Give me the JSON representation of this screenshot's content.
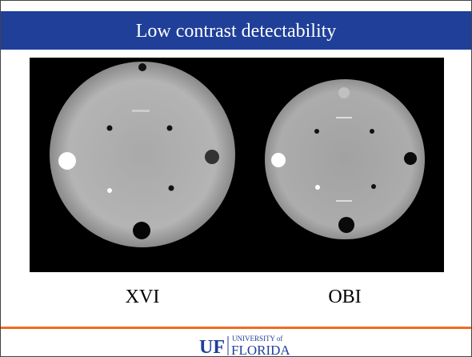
{
  "header": {
    "title": "Low contrast detectability"
  },
  "images": [
    {
      "label": "XVI"
    },
    {
      "label": "OBI"
    }
  ],
  "footer": {
    "logo_mark": "UF",
    "logo_top": "UNIVERSITY of",
    "logo_bottom": "FLORIDA"
  }
}
